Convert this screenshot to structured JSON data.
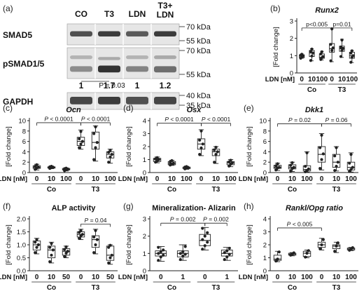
{
  "western_blot": {
    "panel_label": "(a)",
    "lanes": [
      "CO",
      "T3",
      "LDN",
      "T3+\nLDN"
    ],
    "rows": [
      {
        "label": "SMAD5",
        "markers": [
          "70 kDa",
          "55 kDa"
        ]
      },
      {
        "label": "pSMAD1/5",
        "markers": [
          "70 kDa",
          "55 kDa"
        ]
      },
      {
        "label": "GAPDH",
        "markers": [
          "40 kDa",
          "35 kDa"
        ]
      }
    ],
    "quantification": [
      "1",
      "1.7",
      "1",
      "1.2"
    ],
    "p_text": "P = 0.03"
  },
  "chart_data": [
    {
      "panel_label": "(b)",
      "type": "box",
      "title": "Runx2",
      "title_italic": true,
      "ylabel": "[Fold change]",
      "xlabel": "LDN [nM]",
      "ylim": [
        0,
        3
      ],
      "yticks": [
        0,
        1,
        2,
        3
      ],
      "x_ticks": [
        "0",
        "10",
        "100",
        "0",
        "10",
        "100"
      ],
      "groups": [
        {
          "name": "Co",
          "span": [
            0,
            2
          ]
        },
        {
          "name": "T3",
          "span": [
            3,
            5
          ]
        }
      ],
      "boxes": [
        {
          "q1": 0.88,
          "median": 0.98,
          "q3": 1.05,
          "min": 0.85,
          "max": 1.1,
          "points": [
            0.85,
            0.92,
            0.98,
            1.02,
            1.08
          ]
        },
        {
          "q1": 0.95,
          "median": 1.15,
          "q3": 1.3,
          "min": 0.7,
          "max": 1.4,
          "points": [
            0.72,
            0.98,
            1.15,
            1.25,
            1.38
          ]
        },
        {
          "q1": 0.85,
          "median": 0.9,
          "q3": 1.1,
          "min": 0.75,
          "max": 1.25,
          "points": [
            0.78,
            0.88,
            0.95,
            1.1,
            1.22
          ]
        },
        {
          "q1": 1.2,
          "median": 1.4,
          "q3": 1.7,
          "min": 0.65,
          "max": 2.6,
          "points": [
            0.7,
            1.3,
            1.45,
            1.65,
            2.55
          ]
        },
        {
          "q1": 1.25,
          "median": 1.4,
          "q3": 1.55,
          "min": 0.9,
          "max": 1.95,
          "points": [
            0.95,
            1.3,
            1.42,
            1.5,
            1.9
          ]
        },
        {
          "q1": 0.85,
          "median": 1.0,
          "q3": 1.2,
          "min": 0.6,
          "max": 1.3,
          "points": [
            0.62,
            0.9,
            1.0,
            1.15,
            1.28
          ]
        }
      ],
      "annotations": [
        {
          "text": "p<0.005",
          "from": 0,
          "to": 3,
          "y": 2.6
        },
        {
          "text": "p=0.01",
          "from": 3,
          "to": 5,
          "y": 2.6
        }
      ]
    },
    {
      "panel_label": "(c)",
      "type": "box",
      "title": "Ocn",
      "title_italic": true,
      "ylabel": "[Fold change]",
      "xlabel": "LDN [nM]",
      "ylim": [
        0,
        10
      ],
      "yticks": [
        0,
        2,
        4,
        6,
        8,
        10
      ],
      "x_ticks": [
        "0",
        "10",
        "100",
        "0",
        "10",
        "100"
      ],
      "groups": [
        {
          "name": "Co",
          "span": [
            0,
            2
          ]
        },
        {
          "name": "T3",
          "span": [
            3,
            5
          ]
        }
      ],
      "boxes": [
        {
          "q1": 0.8,
          "median": 1.0,
          "q3": 1.3,
          "min": 0.5,
          "max": 1.6,
          "points": [
            0.6,
            0.9,
            1.0,
            1.2,
            1.5
          ]
        },
        {
          "q1": 0.85,
          "median": 1.0,
          "q3": 1.1,
          "min": 0.75,
          "max": 1.25,
          "points": [
            0.8,
            0.95,
            1.0,
            1.1,
            1.2
          ]
        },
        {
          "q1": 0.5,
          "median": 0.6,
          "q3": 0.8,
          "min": 0.3,
          "max": 0.9,
          "points": [
            0.35,
            0.55,
            0.65,
            0.75,
            0.85
          ]
        },
        {
          "q1": 5.2,
          "median": 6.0,
          "q3": 6.8,
          "min": 4.5,
          "max": 8.2,
          "points": [
            4.8,
            5.5,
            6.0,
            6.5,
            7.9
          ]
        },
        {
          "q1": 4.5,
          "median": 5.8,
          "q3": 7.8,
          "min": 2.2,
          "max": 9.0,
          "points": [
            2.5,
            4.8,
            5.8,
            7.5,
            8.8
          ]
        },
        {
          "q1": 2.8,
          "median": 3.5,
          "q3": 4.0,
          "min": 1.8,
          "max": 4.5,
          "points": [
            2.0,
            3.0,
            3.5,
            3.9,
            4.3
          ]
        }
      ],
      "annotations": [
        {
          "text": "P < 0.0001",
          "from": 0,
          "to": 3,
          "y": 9.6,
          "italic_p": true
        },
        {
          "text": "P < 0.0001",
          "from": 3,
          "to": 5,
          "y": 9.6,
          "italic_p": true
        }
      ]
    },
    {
      "panel_label": "(d)",
      "type": "box",
      "title": "Osx",
      "title_italic": true,
      "ylabel": "[Fold change]",
      "xlabel": "LDN [nM]",
      "ylim": [
        0,
        4
      ],
      "yticks": [
        0,
        1,
        2,
        3,
        4
      ],
      "x_ticks": [
        "0",
        "10",
        "100",
        "0",
        "10",
        "100"
      ],
      "groups": [
        {
          "name": "Co",
          "span": [
            0,
            2
          ]
        },
        {
          "name": "T3",
          "span": [
            3,
            5
          ]
        }
      ],
      "boxes": [
        {
          "q1": 0.85,
          "median": 1.0,
          "q3": 1.1,
          "min": 0.75,
          "max": 1.2,
          "points": [
            0.8,
            0.9,
            1.0,
            1.05,
            1.15
          ]
        },
        {
          "q1": 0.6,
          "median": 0.7,
          "q3": 0.85,
          "min": 0.55,
          "max": 0.95,
          "points": [
            0.58,
            0.65,
            0.72,
            0.82,
            0.92
          ]
        },
        {
          "q1": 0.3,
          "median": 0.38,
          "q3": 0.42,
          "min": 0.25,
          "max": 0.48,
          "points": [
            0.28,
            0.35,
            0.38,
            0.42,
            0.46
          ]
        },
        {
          "q1": 1.8,
          "median": 2.2,
          "q3": 2.6,
          "min": 1.3,
          "max": 3.3,
          "points": [
            1.4,
            1.9,
            2.2,
            2.5,
            3.2
          ]
        },
        {
          "q1": 1.3,
          "median": 1.6,
          "q3": 1.8,
          "min": 0.7,
          "max": 2.0,
          "points": [
            0.8,
            1.4,
            1.6,
            1.75,
            1.95
          ]
        },
        {
          "q1": 0.6,
          "median": 0.75,
          "q3": 0.85,
          "min": 0.45,
          "max": 1.0,
          "points": [
            0.5,
            0.65,
            0.75,
            0.82,
            0.95
          ]
        }
      ],
      "annotations": [
        {
          "text": "P < 0.0001",
          "from": 0,
          "to": 3,
          "y": 3.8,
          "italic_p": true
        },
        {
          "text": "P < 0.0001",
          "from": 3,
          "to": 5,
          "y": 3.8,
          "italic_p": true
        }
      ]
    },
    {
      "panel_label": "(e)",
      "type": "box",
      "title": "Dkk1",
      "title_italic": true,
      "ylabel": "[Fold change]",
      "xlabel": "LDN [nM]",
      "ylim": [
        0,
        10
      ],
      "yticks": [
        0,
        2,
        4,
        6,
        8,
        10
      ],
      "x_ticks": [
        "0",
        "10",
        "100",
        "0",
        "10",
        "100"
      ],
      "groups": [
        {
          "name": "Co",
          "span": [
            0,
            2
          ]
        },
        {
          "name": "T3",
          "span": [
            3,
            5
          ]
        }
      ],
      "boxes": [
        {
          "q1": 0.8,
          "median": 1.0,
          "q3": 1.4,
          "min": 0.4,
          "max": 1.8,
          "points": [
            0.5,
            0.9,
            1.0,
            1.3,
            1.7
          ]
        },
        {
          "q1": 0.7,
          "median": 1.0,
          "q3": 1.5,
          "min": 0.2,
          "max": 2.0,
          "points": [
            0.3,
            0.8,
            1.0,
            1.4,
            1.9
          ]
        },
        {
          "q1": 0.3,
          "median": 0.6,
          "q3": 1.3,
          "min": 0.1,
          "max": 4.0,
          "points": [
            0.15,
            0.4,
            0.7,
            1.2,
            3.8
          ]
        },
        {
          "q1": 2.0,
          "median": 3.5,
          "q3": 5.0,
          "min": 0.5,
          "max": 7.5,
          "points": [
            0.8,
            2.5,
            3.6,
            4.8,
            7.2
          ]
        },
        {
          "q1": 1.0,
          "median": 2.0,
          "q3": 3.5,
          "min": 0.3,
          "max": 5.0,
          "points": [
            0.4,
            1.2,
            2.0,
            3.2,
            4.8
          ]
        },
        {
          "q1": 0.5,
          "median": 1.0,
          "q3": 2.0,
          "min": 0.1,
          "max": 3.8,
          "points": [
            0.2,
            0.6,
            1.0,
            1.8,
            3.5
          ]
        }
      ],
      "annotations": [
        {
          "text": "P = 0.02",
          "from": 0,
          "to": 3,
          "y": 9.4,
          "italic_p": true
        },
        {
          "text": "P = 0.06",
          "from": 3,
          "to": 5,
          "y": 9.4,
          "italic_p": true
        }
      ]
    },
    {
      "panel_label": "(f)",
      "type": "box",
      "title": "ALP activity",
      "title_italic": false,
      "ylabel": "[Fold change]",
      "xlabel": "LDN [nM]",
      "ylim": [
        0,
        2.0
      ],
      "yticks": [
        0,
        0.5,
        1.0,
        1.5,
        2.0
      ],
      "ytick_decimals": 1,
      "x_ticks": [
        "0",
        "10",
        "50",
        "0",
        "10",
        "50"
      ],
      "groups": [
        {
          "name": "Co",
          "span": [
            0,
            2
          ]
        },
        {
          "name": "T3",
          "span": [
            3,
            5
          ]
        }
      ],
      "boxes": [
        {
          "q1": 0.8,
          "median": 1.0,
          "q3": 1.15,
          "min": 0.65,
          "max": 1.25,
          "points": [
            0.7,
            0.9,
            1.0,
            1.1,
            1.2
          ]
        },
        {
          "q1": 0.5,
          "median": 0.8,
          "q3": 0.95,
          "min": 0.3,
          "max": 1.1,
          "points": [
            0.35,
            0.6,
            0.8,
            0.9,
            1.05
          ]
        },
        {
          "q1": 0.6,
          "median": 0.75,
          "q3": 0.85,
          "min": 0.5,
          "max": 0.95,
          "points": [
            0.55,
            0.68,
            0.75,
            0.82,
            0.92
          ]
        },
        {
          "q1": 1.3,
          "median": 1.4,
          "q3": 1.5,
          "min": 1.2,
          "max": 1.6,
          "points": [
            1.25,
            1.35,
            1.4,
            1.48,
            1.55
          ]
        },
        {
          "q1": 0.9,
          "median": 1.2,
          "q3": 1.35,
          "min": 0.65,
          "max": 1.6,
          "points": [
            0.7,
            1.0,
            1.2,
            1.3,
            1.55
          ]
        },
        {
          "q1": 0.4,
          "median": 0.6,
          "q3": 0.95,
          "min": 0.25,
          "max": 1.0,
          "points": [
            0.3,
            0.5,
            0.6,
            0.9,
            0.98
          ]
        }
      ],
      "annotations": [
        {
          "text": "P = 0.04",
          "from": 3,
          "to": 5,
          "y": 1.8,
          "italic_p": true
        }
      ]
    },
    {
      "panel_label": "(g)",
      "type": "box",
      "title": "Mineralization- Alizarin",
      "title_italic": false,
      "ylabel": "[Fold change]",
      "xlabel": "LDN [nM]",
      "ylim": [
        0,
        3
      ],
      "yticks": [
        0,
        1,
        2,
        3
      ],
      "x_ticks": [
        "0",
        "1",
        "0",
        "1"
      ],
      "groups": [
        {
          "name": "Co",
          "span": [
            0,
            1
          ]
        },
        {
          "name": "T3",
          "span": [
            2,
            3
          ]
        }
      ],
      "boxes": [
        {
          "q1": 0.85,
          "median": 1.0,
          "q3": 1.15,
          "min": 0.55,
          "max": 1.4,
          "points": [
            0.6,
            0.8,
            0.9,
            1.0,
            1.1,
            1.2,
            1.35
          ]
        },
        {
          "q1": 0.8,
          "median": 1.0,
          "q3": 1.15,
          "min": 0.6,
          "max": 1.5,
          "points": [
            0.65,
            0.85,
            0.95,
            1.0,
            1.1,
            1.4
          ]
        },
        {
          "q1": 1.45,
          "median": 1.75,
          "q3": 2.1,
          "min": 1.2,
          "max": 2.5,
          "points": [
            1.25,
            1.45,
            1.65,
            1.8,
            2.0,
            2.2,
            2.45
          ]
        },
        {
          "q1": 0.85,
          "median": 1.0,
          "q3": 1.2,
          "min": 0.6,
          "max": 1.35,
          "points": [
            0.65,
            0.8,
            0.95,
            1.05,
            1.15,
            1.3
          ]
        }
      ],
      "annotations": [
        {
          "text": "P = 0.002",
          "from": 0,
          "to": 2,
          "y": 2.75,
          "italic_p": true
        },
        {
          "text": "P = 0.002",
          "from": 2,
          "to": 3,
          "y": 2.75,
          "italic_p": true
        }
      ]
    },
    {
      "panel_label": "(h)",
      "type": "box",
      "title": "Rankl/Opg ratio",
      "title_italic": true,
      "ylabel": "[Fold change]",
      "xlabel": "LDN [nM]",
      "ylim": [
        0,
        4
      ],
      "yticks": [
        0,
        1,
        2,
        3,
        4
      ],
      "x_ticks": [
        "0",
        "10",
        "100",
        "0",
        "10",
        "100"
      ],
      "groups": [
        {
          "name": "Co",
          "span": [
            0,
            2
          ]
        },
        {
          "name": "T3",
          "span": [
            3,
            5
          ]
        }
      ],
      "boxes": [
        {
          "q1": 0.8,
          "median": 0.9,
          "q3": 1.2,
          "min": 0.7,
          "max": 1.5,
          "points": [
            0.75,
            0.9,
            1.45
          ]
        },
        {
          "q1": 1.2,
          "median": 1.28,
          "q3": 1.35,
          "min": 1.15,
          "max": 1.4,
          "points": [
            1.2,
            1.28,
            1.38
          ]
        },
        {
          "q1": 1.1,
          "median": 1.35,
          "q3": 1.5,
          "min": 1.0,
          "max": 1.6,
          "points": [
            1.05,
            1.35,
            1.55
          ]
        },
        {
          "q1": 1.8,
          "median": 2.0,
          "q3": 2.2,
          "min": 1.6,
          "max": 2.5,
          "points": [
            1.7,
            2.0,
            2.4
          ]
        },
        {
          "q1": 1.7,
          "median": 1.9,
          "q3": 2.0,
          "min": 1.4,
          "max": 2.2,
          "points": [
            1.5,
            1.9,
            2.15
          ]
        },
        {
          "q1": 1.6,
          "median": 1.68,
          "q3": 1.75,
          "min": 1.55,
          "max": 1.8,
          "points": [
            1.58,
            1.68,
            1.78
          ]
        }
      ],
      "annotations": [
        {
          "text": "P < 0.005",
          "from": 0,
          "to": 3,
          "y": 3.3,
          "italic_p": true
        }
      ]
    }
  ]
}
